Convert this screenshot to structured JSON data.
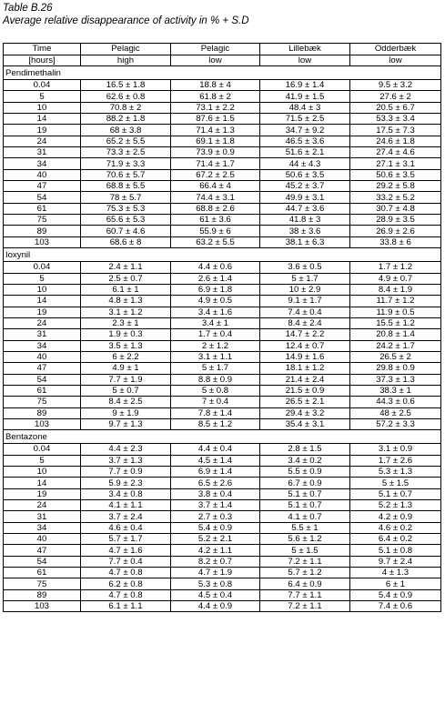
{
  "caption": {
    "line1": "Table B.26",
    "line2": "Average relative disappearance of activity in % + S.D"
  },
  "table": {
    "header_row1": [
      "Time",
      "Pelagic",
      "Pelagic",
      "Lillebæk",
      "Odderbæk"
    ],
    "header_row2": [
      "[hours]",
      "high",
      "low",
      "low",
      "low"
    ],
    "sections": [
      {
        "name": "Pendimethalin",
        "rows": [
          [
            "0.04",
            "16.5 ± 1.8",
            "18.8 ± 4",
            "16.9 ± 1.4",
            "9.5 ± 3.2"
          ],
          [
            "5",
            "62.6 ± 0.8",
            "61.8 ± 2",
            "41.9 ± 1.5",
            "27.6 ± 2"
          ],
          [
            "10",
            "70.8 ± 2",
            "73.1 ± 2.2",
            "48.4 ± 3",
            "20.5 ± 6.7"
          ],
          [
            "14",
            "88.2 ± 1.8",
            "87.6 ± 1.5",
            "71.5 ± 2.5",
            "53.3 ± 3.4"
          ],
          [
            "19",
            "68 ± 3.8",
            "71.4 ± 1.3",
            "34.7 ± 9.2",
            "17.5 ± 7.3"
          ],
          [
            "24",
            "65.2 ± 5.5",
            "69.1 ± 1.8",
            "46.5 ± 3.6",
            "24.6 ± 1.8"
          ],
          [
            "31",
            "73.3 ± 2.5",
            "73.9 ± 0.9",
            "51.6 ± 2.1",
            "27.4 ± 4.6"
          ],
          [
            "34",
            "71.9 ± 3.3",
            "71.4 ± 1.7",
            "44 ± 4.3",
            "27.1 ± 3.1"
          ],
          [
            "40",
            "70.6 ± 5.7",
            "67.2 ± 2.5",
            "50.6 ± 3.5",
            "50.6 ± 3.5"
          ],
          [
            "47",
            "68.8 ± 5.5",
            "66.4 ± 4",
            "45.2 ± 3.7",
            "29.2 ± 5.8"
          ],
          [
            "54",
            "78 ± 5.7",
            "74.4 ± 3.1",
            "49.9 ± 3.1",
            "33.2 ± 5.2"
          ],
          [
            "61",
            "75.3 ± 5.3",
            "68.8 ± 2.6",
            "44.7 ± 3.6",
            "30.7 ± 4.8"
          ],
          [
            "75",
            "65.6 ± 5.3",
            "61 ± 3.6",
            "41.8 ± 3",
            "28.9 ± 3.5"
          ],
          [
            "89",
            "60.7 ± 4.6",
            "55.9 ± 6",
            "38 ± 3.6",
            "26.9 ± 2.6"
          ],
          [
            "103",
            "68.6 ± 8",
            "63.2 ± 5.5",
            "38.1 ± 6.3",
            "33.8 ± 6"
          ]
        ]
      },
      {
        "name": "Ioxynil",
        "rows": [
          [
            "0.04",
            "2.4 ± 1.1",
            "4.4 ± 0.6",
            "3.6 ± 0.5",
            "1.7 ± 1.2"
          ],
          [
            "5",
            "2.5 ± 0.7",
            "2.6 ± 1.4",
            "5 ± 1.7",
            "4.9 ± 0.7"
          ],
          [
            "10",
            "6.1 ± 1",
            "6.9 ± 1.8",
            "10 ± 2.9",
            "8.4 ± 1.9"
          ],
          [
            "14",
            "4.8 ± 1.3",
            "4.9 ± 0.5",
            "9.1 ± 1.7",
            "11.7 ± 1.2"
          ],
          [
            "19",
            "3.1 ± 1.2",
            "3.4 ± 1.6",
            "7.4 ± 0.4",
            "11.9 ± 0.5"
          ],
          [
            "24",
            "2.3 ± 1",
            "3.4 ± 1",
            "8.4 ± 2.4",
            "15.5 ± 1.2"
          ],
          [
            "31",
            "1.9 ± 0.3",
            "1.7 ± 0.4",
            "14.7 ± 2.2",
            "20.8 ± 1.4"
          ],
          [
            "34",
            "3.5 ± 1.3",
            "2 ± 1.2",
            "12.4 ± 0.7",
            "24.2 ± 1.7"
          ],
          [
            "40",
            "6 ± 2.2",
            "3.1 ± 1.1",
            "14.9 ± 1.6",
            "26.5 ± 2"
          ],
          [
            "47",
            "4.9 ± 1",
            "5 ± 1.7",
            "18.1 ± 1.2",
            "29.8 ± 0.9"
          ],
          [
            "54",
            "7.7 ± 1.9",
            "8.8 ± 0.9",
            "21.4 ± 2.4",
            "37.3 ± 1.3"
          ],
          [
            "61",
            "5 ± 0.7",
            "5 ± 0.8",
            "21.5 ± 0.9",
            "38.3 ± 1"
          ],
          [
            "75",
            "8.4 ± 2.5",
            "7 ± 0.4",
            "26.5 ± 2.1",
            "44.3 ± 0.6"
          ],
          [
            "89",
            "9 ± 1.9",
            "7.8 ± 1.4",
            "29.4 ± 3.2",
            "48 ± 2.5"
          ],
          [
            "103",
            "9.7 ± 1.3",
            "8.5 ± 1.2",
            "35.4 ± 3.1",
            "57.2 ± 3.3"
          ]
        ]
      },
      {
        "name": "Bentazone",
        "rows": [
          [
            "0.04",
            "4.4 ± 2.3",
            "4.4 ± 0.4",
            "2.8 ± 1.5",
            "3.1 ± 0.9"
          ],
          [
            "5",
            "3.7 ± 1.3",
            "4.5 ± 1.4",
            "3.4 ± 0.2",
            "1.7 ± 2.6"
          ],
          [
            "10",
            "7.7 ± 0.9",
            "6.9 ± 1.4",
            "5.5 ± 0.9",
            "5.3 ± 1.3"
          ],
          [
            "14",
            "5.9 ± 2.3",
            "6.5 ± 2.6",
            "6.7 ± 0.9",
            "5 ± 1.5"
          ],
          [
            "19",
            "3.4 ± 0.8",
            "3.8 ± 0.4",
            "5.1 ± 0.7",
            "5.1 ± 0.7"
          ],
          [
            "24",
            "4.1 ± 1.1",
            "3.7 ± 1.4",
            "5.1 ± 0.7",
            "5.2 ± 1.3"
          ],
          [
            "31",
            "3.7 ± 2.4",
            "2.7 ± 0.3",
            "4.1 ± 0.7",
            "4.2 ± 0.9"
          ],
          [
            "34",
            "4.6 ± 0.4",
            "5.4 ± 0.9",
            "5.5 ± 1",
            "4.6 ± 0.2"
          ],
          [
            "40",
            "5.7 ± 1.7",
            "5.2 ± 2.1",
            "5.6 ± 1.2",
            "6.4 ± 0.2"
          ],
          [
            "47",
            "4.7 ± 1.6",
            "4.2 ± 1.1",
            "5 ± 1.5",
            "5.1 ± 0.8"
          ],
          [
            "54",
            "7.7 ± 0.4",
            "8.2 ± 0.7",
            "7.2 ± 1.1",
            "9.7 ± 2.4"
          ],
          [
            "61",
            "4.7 ± 0.8",
            "4.7 ± 1.9",
            "5.7 ± 1.2",
            "4 ± 1.3"
          ],
          [
            "75",
            "6.2 ± 0.8",
            "5.3 ± 0.8",
            "6.4 ± 0.9",
            "6 ± 1"
          ],
          [
            "89",
            "4.7 ± 0.8",
            "4.5 ± 0.4",
            "7.7 ± 1.1",
            "5.4 ± 0.9"
          ],
          [
            "103",
            "6.1 ± 1.1",
            "4.4 ± 0.9",
            "7.2 ± 1.1",
            "7.4 ± 0.6"
          ]
        ]
      }
    ]
  }
}
